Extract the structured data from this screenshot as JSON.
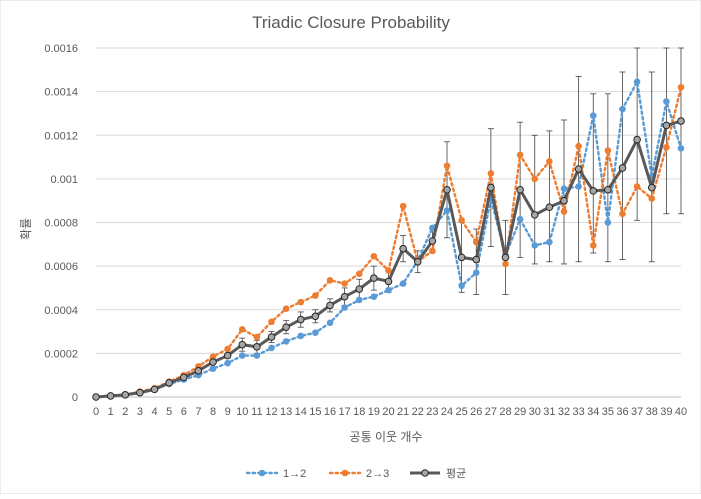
{
  "chart_data": {
    "type": "line",
    "title": "Triadic Closure Probability",
    "xlabel": "공통 이웃 개수",
    "ylabel": "확률",
    "ylim": [
      0,
      0.0016
    ],
    "yticks": [
      "0",
      "0.0002",
      "0.0004",
      "0.0006",
      "0.0008",
      "0.001",
      "0.0012",
      "0.0014",
      "0.0016"
    ],
    "grid": true,
    "legend_position": "bottom",
    "x": [
      0,
      1,
      2,
      3,
      4,
      5,
      6,
      7,
      8,
      9,
      10,
      11,
      12,
      13,
      14,
      15,
      16,
      17,
      18,
      19,
      20,
      21,
      22,
      23,
      24,
      25,
      26,
      27,
      28,
      29,
      30,
      31,
      32,
      33,
      34,
      35,
      36,
      37,
      38,
      39,
      40
    ],
    "series": [
      {
        "name": "1→2",
        "color": "#5b9bd5",
        "line_style": "dotted",
        "values": [
          0,
          5e-06,
          1e-05,
          2e-05,
          3.5e-05,
          6e-05,
          8e-05,
          0.0001,
          0.00013,
          0.000155,
          0.00019,
          0.00019,
          0.000225,
          0.000255,
          0.00028,
          0.000295,
          0.00034,
          0.00041,
          0.000445,
          0.00046,
          0.00049,
          0.00052,
          0.000625,
          0.000775,
          0.000855,
          0.00051,
          0.00057,
          0.00091,
          0.00065,
          0.000815,
          0.000695,
          0.00071,
          0.000955,
          0.000965,
          0.00129,
          0.0008,
          0.00132,
          0.001445,
          0.00101,
          0.001355,
          0.00114
        ]
      },
      {
        "name": "2→3",
        "color": "#ed7d31",
        "line_style": "dotted",
        "values": [
          0,
          5e-06,
          1e-05,
          2.5e-05,
          4e-05,
          7e-05,
          0.0001,
          0.00014,
          0.000185,
          0.00022,
          0.00031,
          0.000275,
          0.000345,
          0.000405,
          0.000435,
          0.000465,
          0.000535,
          0.00052,
          0.000565,
          0.000645,
          0.00058,
          0.000875,
          0.00062,
          0.00067,
          0.00106,
          0.00081,
          0.00071,
          0.001025,
          0.00061,
          0.00111,
          0.001,
          0.00108,
          0.00085,
          0.00115,
          0.000695,
          0.00113,
          0.00084,
          0.000965,
          0.00091,
          0.001145,
          0.00142
        ]
      },
      {
        "name": "평균",
        "color": "#595959",
        "line_style": "solid",
        "values": [
          0,
          5e-06,
          1e-05,
          2e-05,
          3.5e-05,
          6.5e-05,
          9e-05,
          0.00012,
          0.00016,
          0.00019,
          0.00024,
          0.00023,
          0.000275,
          0.00032,
          0.000355,
          0.00037,
          0.00042,
          0.00046,
          0.000495,
          0.000545,
          0.00053,
          0.00068,
          0.00062,
          0.000715,
          0.00095,
          0.00064,
          0.00063,
          0.00096,
          0.00064,
          0.00095,
          0.000835,
          0.00087,
          0.0009,
          0.001045,
          0.000945,
          0.00095,
          0.00105,
          0.00118,
          0.00096,
          0.001245,
          0.001265
        ]
      }
    ],
    "error_bars": {
      "series": "평균",
      "color": "#404040",
      "from_x": 10,
      "upper": [
        null,
        null,
        null,
        null,
        null,
        null,
        null,
        null,
        null,
        null,
        0.00027,
        0.00026,
        0.0003,
        0.00035,
        0.00039,
        0.0004,
        0.00045,
        0.0005,
        0.00054,
        0.0006,
        0.00058,
        0.00074,
        0.00067,
        0.00077,
        0.00117,
        0.0008,
        0.00077,
        0.00123,
        0.00081,
        0.00126,
        0.0012,
        0.00122,
        0.00127,
        0.00147,
        0.00139,
        0.00139,
        0.00149,
        0.0016,
        0.00149,
        0.0016,
        0.0016
      ],
      "lower": [
        null,
        null,
        null,
        null,
        null,
        null,
        null,
        null,
        null,
        null,
        0.00021,
        0.0002,
        0.00025,
        0.00029,
        0.00032,
        0.00034,
        0.00039,
        0.00042,
        0.00045,
        0.00049,
        0.00048,
        0.00062,
        0.00057,
        0.00066,
        0.00073,
        0.00048,
        0.00047,
        0.00069,
        0.00047,
        0.00064,
        0.00061,
        0.00062,
        0.00061,
        0.00062,
        0.00066,
        0.00062,
        0.00063,
        0.00081,
        0.00062,
        0.00084,
        0.00084
      ]
    }
  }
}
